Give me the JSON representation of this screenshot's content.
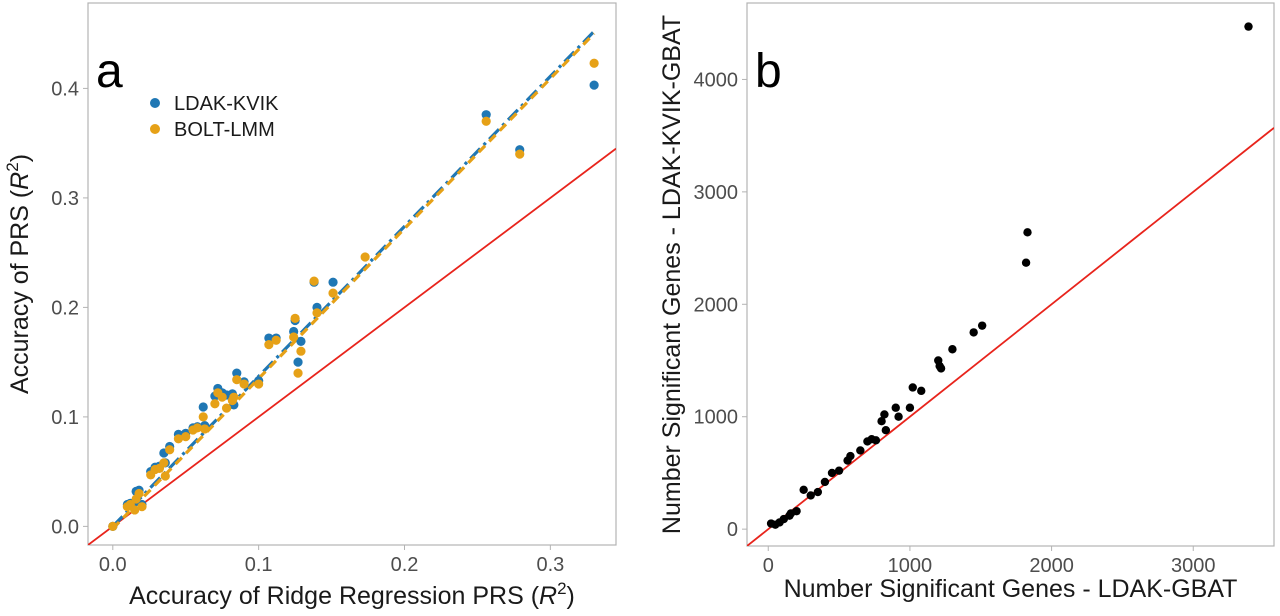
{
  "chart_data": [
    {
      "panel_label": "a",
      "type": "scatter",
      "xlabel": "Accuracy of Ridge Regression PRS (R²)",
      "ylabel": "Accuracy of PRS (R²)",
      "xlim": [
        -0.017,
        0.345
      ],
      "ylim": [
        -0.017,
        0.478
      ],
      "xticks": [
        "0.0",
        "0.1",
        "0.2",
        "0.3"
      ],
      "yticks": [
        "0.0",
        "0.1",
        "0.2",
        "0.3",
        "0.4"
      ],
      "grid": false,
      "legend_position": "top-left",
      "reference_line": {
        "slope": 1,
        "intercept": 0,
        "color": "#e8241c"
      },
      "series": [
        {
          "name": "LDAK-KVIK",
          "color": "#1f77b4",
          "fit": {
            "slope": 1.37,
            "intercept": 0.0,
            "x_range": [
              0.0,
              0.33
            ],
            "style": "dashdot"
          },
          "points": [
            [
              0.0,
              0.0
            ],
            [
              0.01,
              0.02
            ],
            [
              0.012,
              0.021
            ],
            [
              0.015,
              0.022
            ],
            [
              0.016,
              0.032
            ],
            [
              0.018,
              0.033
            ],
            [
              0.02,
              0.02
            ],
            [
              0.026,
              0.05
            ],
            [
              0.029,
              0.054
            ],
            [
              0.032,
              0.055
            ],
            [
              0.035,
              0.067
            ],
            [
              0.036,
              0.058
            ],
            [
              0.039,
              0.073
            ],
            [
              0.045,
              0.084
            ],
            [
              0.05,
              0.085
            ],
            [
              0.055,
              0.09
            ],
            [
              0.058,
              0.091
            ],
            [
              0.062,
              0.109
            ],
            [
              0.063,
              0.092
            ],
            [
              0.07,
              0.119
            ],
            [
              0.072,
              0.126
            ],
            [
              0.075,
              0.122
            ],
            [
              0.078,
              0.12
            ],
            [
              0.082,
              0.121
            ],
            [
              0.083,
              0.111
            ],
            [
              0.085,
              0.14
            ],
            [
              0.09,
              0.132
            ],
            [
              0.1,
              0.133
            ],
            [
              0.107,
              0.172
            ],
            [
              0.112,
              0.172
            ],
            [
              0.124,
              0.178
            ],
            [
              0.125,
              0.188
            ],
            [
              0.127,
              0.15
            ],
            [
              0.129,
              0.169
            ],
            [
              0.138,
              0.223
            ],
            [
              0.14,
              0.2
            ],
            [
              0.151,
              0.223
            ],
            [
              0.256,
              0.376
            ],
            [
              0.279,
              0.344
            ],
            [
              0.33,
              0.403
            ]
          ]
        },
        {
          "name": "BOLT-LMM",
          "color": "#e6a117",
          "fit": {
            "slope": 1.37,
            "intercept": -0.002,
            "x_range": [
              0.0,
              0.33
            ],
            "style": "dashed"
          },
          "points": [
            [
              0.0,
              0.0
            ],
            [
              0.01,
              0.018
            ],
            [
              0.012,
              0.02
            ],
            [
              0.015,
              0.015
            ],
            [
              0.016,
              0.025
            ],
            [
              0.018,
              0.03
            ],
            [
              0.02,
              0.018
            ],
            [
              0.026,
              0.047
            ],
            [
              0.029,
              0.052
            ],
            [
              0.032,
              0.053
            ],
            [
              0.035,
              0.058
            ],
            [
              0.036,
              0.046
            ],
            [
              0.039,
              0.07
            ],
            [
              0.045,
              0.08
            ],
            [
              0.05,
              0.082
            ],
            [
              0.055,
              0.088
            ],
            [
              0.058,
              0.09
            ],
            [
              0.062,
              0.1
            ],
            [
              0.063,
              0.089
            ],
            [
              0.07,
              0.112
            ],
            [
              0.072,
              0.122
            ],
            [
              0.075,
              0.118
            ],
            [
              0.078,
              0.108
            ],
            [
              0.082,
              0.115
            ],
            [
              0.083,
              0.118
            ],
            [
              0.085,
              0.134
            ],
            [
              0.09,
              0.13
            ],
            [
              0.1,
              0.13
            ],
            [
              0.107,
              0.166
            ],
            [
              0.112,
              0.17
            ],
            [
              0.124,
              0.173
            ],
            [
              0.125,
              0.19
            ],
            [
              0.127,
              0.14
            ],
            [
              0.129,
              0.16
            ],
            [
              0.138,
              0.224
            ],
            [
              0.14,
              0.195
            ],
            [
              0.151,
              0.213
            ],
            [
              0.173,
              0.246
            ],
            [
              0.256,
              0.37
            ],
            [
              0.279,
              0.34
            ],
            [
              0.33,
              0.423
            ]
          ]
        }
      ]
    },
    {
      "panel_label": "b",
      "type": "scatter",
      "xlabel": "Number Significant Genes - LDAK-GBAT",
      "ylabel": "Number Significant Genes - LDAK-KVIK-GBAT",
      "xlim": [
        -150,
        3570
      ],
      "ylim": [
        -150,
        4680
      ],
      "xticks": [
        "0",
        "1000",
        "2000",
        "3000"
      ],
      "yticks": [
        "0",
        "1000",
        "2000",
        "3000",
        "4000"
      ],
      "grid": false,
      "reference_line": {
        "slope": 1,
        "intercept": 0,
        "color": "#e8241c"
      },
      "series": [
        {
          "color": "#000000",
          "points": [
            [
              20,
              50
            ],
            [
              50,
              40
            ],
            [
              80,
              60
            ],
            [
              110,
              90
            ],
            [
              150,
              120
            ],
            [
              160,
              140
            ],
            [
              200,
              160
            ],
            [
              250,
              350
            ],
            [
              300,
              300
            ],
            [
              350,
              330
            ],
            [
              400,
              420
            ],
            [
              450,
              500
            ],
            [
              500,
              520
            ],
            [
              560,
              610
            ],
            [
              580,
              650
            ],
            [
              650,
              700
            ],
            [
              700,
              780
            ],
            [
              730,
              800
            ],
            [
              760,
              790
            ],
            [
              800,
              960
            ],
            [
              820,
              1020
            ],
            [
              830,
              880
            ],
            [
              900,
              1080
            ],
            [
              920,
              1000
            ],
            [
              1000,
              1080
            ],
            [
              1020,
              1260
            ],
            [
              1080,
              1230
            ],
            [
              1200,
              1500
            ],
            [
              1210,
              1450
            ],
            [
              1220,
              1430
            ],
            [
              1300,
              1600
            ],
            [
              1450,
              1750
            ],
            [
              1510,
              1810
            ],
            [
              1820,
              2370
            ],
            [
              1830,
              2640
            ],
            [
              3390,
              4470
            ]
          ]
        }
      ]
    }
  ]
}
